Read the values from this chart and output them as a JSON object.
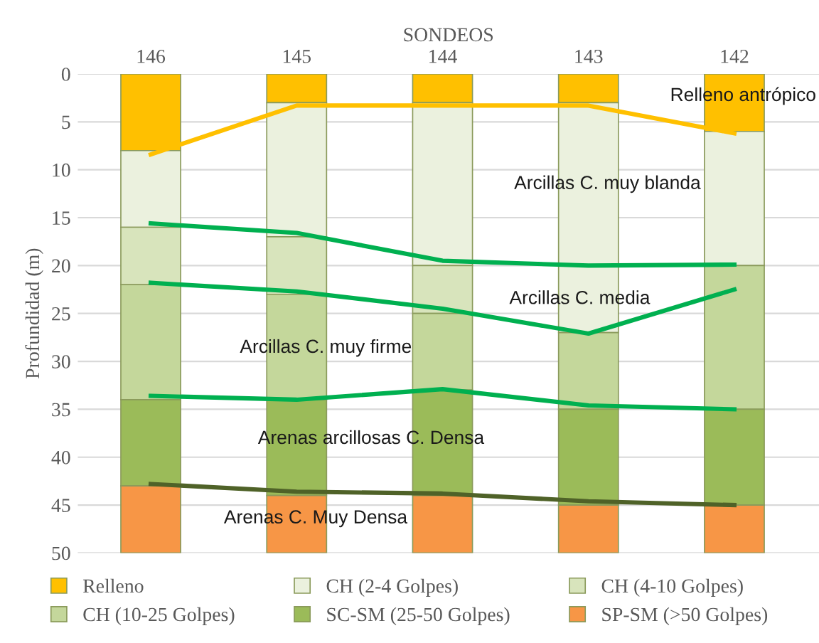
{
  "chart_data": {
    "type": "bar",
    "stacked": true,
    "xlabel": "SONDEOS",
    "ylabel": "Profundidad (m)",
    "categories": [
      "146",
      "145",
      "144",
      "143",
      "142"
    ],
    "ylim": [
      50,
      0
    ],
    "yticks": [
      0,
      5,
      10,
      15,
      20,
      25,
      30,
      35,
      40,
      45,
      50
    ],
    "grid": "y",
    "legend": "bottom",
    "series": [
      {
        "name": "Relleno",
        "color": "#ffc000",
        "values": [
          8,
          3,
          3,
          3,
          6
        ]
      },
      {
        "name": "CH (2-4 Golpes)",
        "color": "#ebf1de",
        "values": [
          8,
          14,
          17,
          24,
          14
        ]
      },
      {
        "name": "CH (4-10 Golpes)",
        "color": "#d8e4bc",
        "values": [
          6,
          6,
          5,
          null,
          null
        ]
      },
      {
        "name": "CH (10-25 Golpes)",
        "color": "#c4d79b",
        "values": [
          12,
          11,
          8,
          8,
          15
        ]
      },
      {
        "name": "SC-SM (25-50 Golpes)",
        "color": "#9bbb59",
        "values": [
          9,
          10,
          11,
          10,
          10
        ]
      },
      {
        "name": "SP-SM (>50 Golpes)",
        "color": "#f79646",
        "values": [
          7,
          6,
          6,
          5,
          5
        ]
      },
      {
        "type": "line",
        "color": "#ffc000",
        "values": [
          8.4,
          3.3,
          3.3,
          3.3,
          6.2
        ]
      },
      {
        "type": "line",
        "color": "#00b050",
        "values": [
          15.6,
          16.6,
          19.5,
          20,
          19.9
        ]
      },
      {
        "type": "line",
        "color": "#00b050",
        "values": [
          21.8,
          22.7,
          24.5,
          27.1,
          22.5
        ]
      },
      {
        "type": "line",
        "color": "#00b050",
        "values": [
          33.6,
          34,
          32.9,
          34.6,
          35
        ]
      },
      {
        "type": "line",
        "color": "#4f6228",
        "values": [
          42.8,
          43.6,
          43.8,
          44.6,
          45
        ]
      }
    ],
    "annotations": [
      "Relleno antrópico",
      "Arcillas C. muy blanda",
      "Arcillas C. media",
      "Arcillas C. muy firme",
      "Arenas arcillosas C. Densa",
      "Arenas C. Muy Densa"
    ]
  }
}
